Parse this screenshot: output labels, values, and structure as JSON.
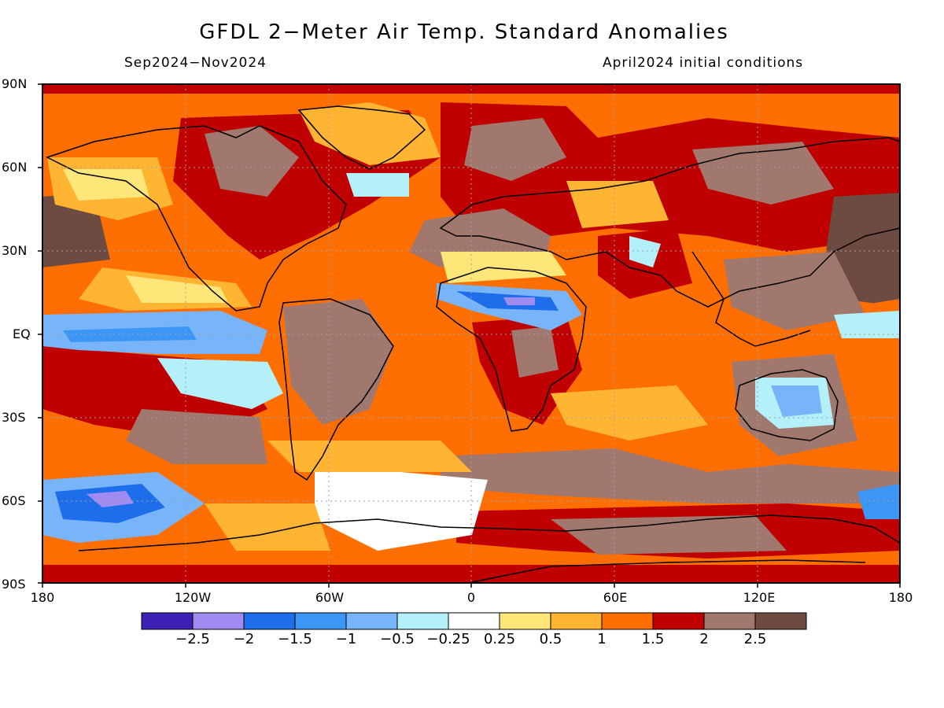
{
  "title": "GFDL 2−Meter Air Temp. Standard Anomalies",
  "period": "Sep2024−Nov2024",
  "initial_conditions": "April2024 initial conditions",
  "lat_labels": [
    "90N",
    "60N",
    "30N",
    "EQ",
    "30S",
    "60S",
    "90S"
  ],
  "lon_labels": [
    "180",
    "120W",
    "60W",
    "0",
    "60E",
    "120E",
    "180"
  ],
  "colorbar": {
    "colors": [
      "#3c1fb4",
      "#a08cf0",
      "#1e6eeb",
      "#3c96f5",
      "#78b4fa",
      "#b4f0fa",
      "#ffffff",
      "#ffe678",
      "#ffb432",
      "#ff6e00",
      "#c00000",
      "#a0786e",
      "#6e4b41"
    ],
    "labels": [
      "−2.5",
      "−2",
      "−1.5",
      "−1",
      "−0.5",
      "−0.25",
      "0.25",
      "0.5",
      "1",
      "1.5",
      "2",
      "2.5"
    ]
  },
  "map": {
    "background_color": "#ff6e00",
    "land_color": "#c00000",
    "outline_color": "#000000"
  }
}
